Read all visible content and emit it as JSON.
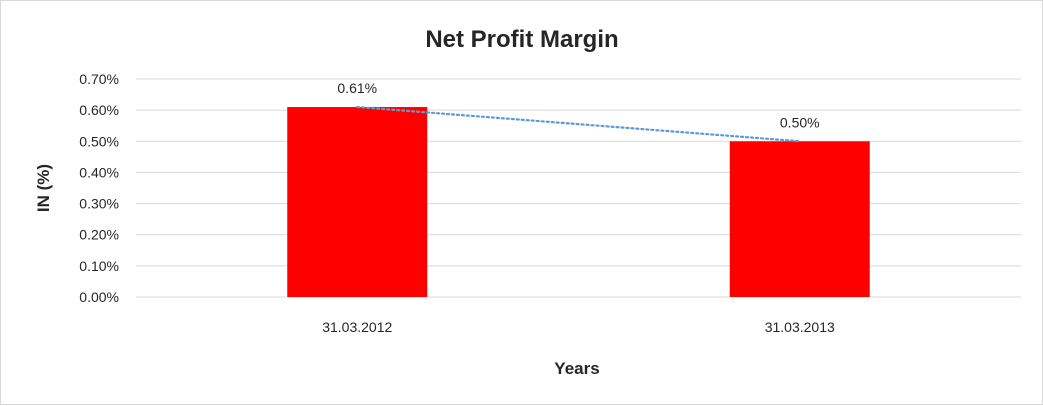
{
  "chart_data": {
    "type": "bar",
    "title": "Net Profit Margin",
    "xlabel": "Years",
    "ylabel": "IN (%)",
    "categories": [
      "31.03.2012",
      "31.03.2013"
    ],
    "values": [
      0.61,
      0.5
    ],
    "data_labels": [
      "0.61%",
      "0.50%"
    ],
    "ylim": [
      0,
      0.7
    ],
    "yticks": [
      0.0,
      0.1,
      0.2,
      0.3,
      0.4,
      0.5,
      0.6,
      0.7
    ],
    "ytick_labels": [
      "0.00%",
      "0.10%",
      "0.20%",
      "0.30%",
      "0.40%",
      "0.50%",
      "0.60%",
      "0.70%"
    ],
    "trendline": "linear",
    "grid": true,
    "legend": "none",
    "colors": {
      "bar": "#ff0000",
      "trendline": "#5b9bd5",
      "gridline": "#d9d9d9",
      "text": "#262626"
    }
  }
}
